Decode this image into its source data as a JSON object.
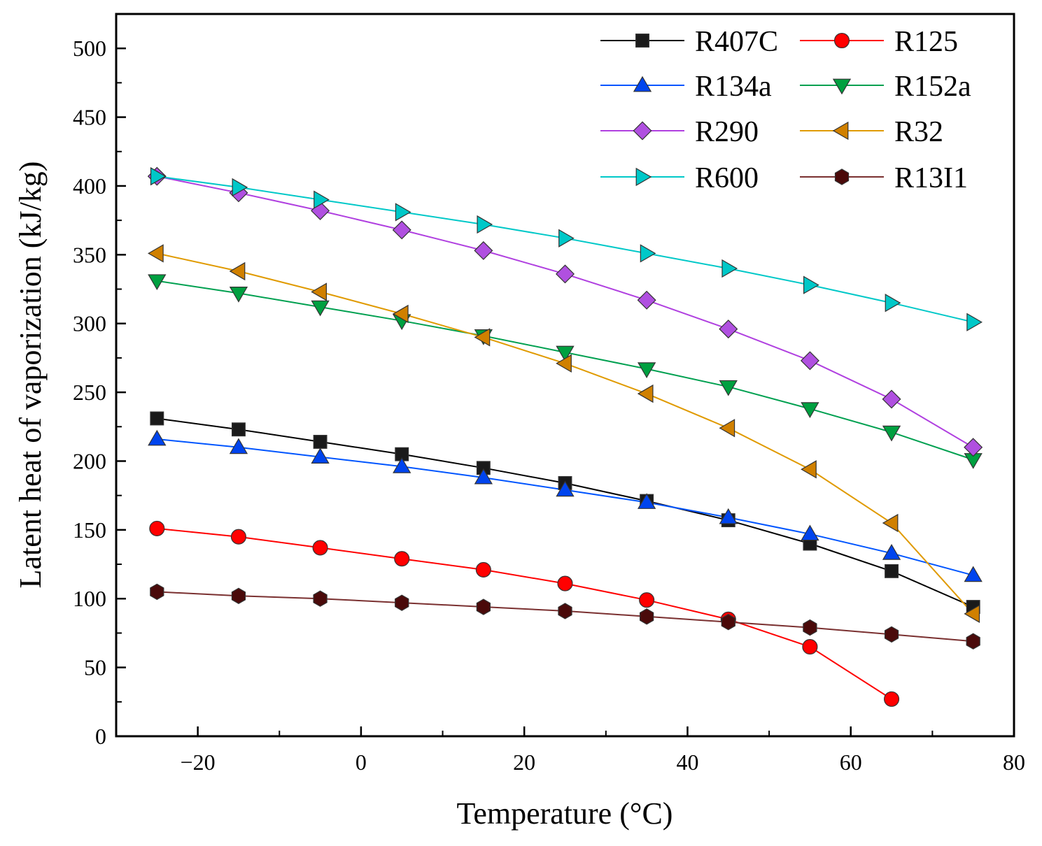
{
  "chart_data": {
    "type": "line",
    "title": "",
    "xlabel": "Temperature (°C)",
    "ylabel": "Latent heat of vaporization (kJ/kg)",
    "xlim": [
      -30,
      80
    ],
    "ylim": [
      0,
      525
    ],
    "xticks": [
      -20,
      0,
      20,
      40,
      60,
      80
    ],
    "yticks": [
      0,
      50,
      100,
      150,
      200,
      250,
      300,
      350,
      400,
      450,
      500
    ],
    "x_tick_labels": [
      "−20",
      "0",
      "20",
      "40",
      "60",
      "80"
    ],
    "y_tick_labels": [
      "0",
      "50",
      "100",
      "150",
      "200",
      "250",
      "300",
      "350",
      "400",
      "450",
      "500"
    ],
    "legend_position": "top-right",
    "series": [
      {
        "name": "R407C",
        "color": "#000000",
        "marker_fill": "#1a1a1a",
        "marker": "square",
        "x": [
          -25,
          -15,
          -5,
          5,
          15,
          25,
          35,
          45,
          55,
          65,
          75
        ],
        "y": [
          231,
          223,
          214,
          205,
          195,
          184,
          171,
          157,
          140,
          120,
          94
        ]
      },
      {
        "name": "R125",
        "color": "#ff0000",
        "marker_fill": "#ff0000",
        "marker": "circle",
        "x": [
          -25,
          -15,
          -5,
          5,
          15,
          25,
          35,
          45,
          55,
          65
        ],
        "y": [
          151,
          145,
          137,
          129,
          121,
          111,
          99,
          85,
          65,
          27
        ]
      },
      {
        "name": "R134a",
        "color": "#0055ff",
        "marker_fill": "#0044ee",
        "marker": "triangle-up",
        "x": [
          -25,
          -15,
          -5,
          5,
          15,
          25,
          35,
          45,
          55,
          65,
          75
        ],
        "y": [
          216,
          210,
          203,
          196,
          188,
          179,
          170,
          159,
          147,
          133,
          117
        ]
      },
      {
        "name": "R152a",
        "color": "#00a050",
        "marker_fill": "#00a040",
        "marker": "triangle-down",
        "x": [
          -25,
          -15,
          -5,
          5,
          15,
          25,
          35,
          45,
          55,
          65,
          75
        ],
        "y": [
          331,
          322,
          312,
          302,
          291,
          279,
          267,
          254,
          238,
          221,
          201
        ]
      },
      {
        "name": "R290",
        "color": "#b040e0",
        "marker_fill": "#b050e0",
        "marker": "diamond",
        "x": [
          -25,
          -15,
          -5,
          5,
          15,
          25,
          35,
          45,
          55,
          65,
          75
        ],
        "y": [
          407,
          395,
          382,
          368,
          353,
          336,
          317,
          296,
          273,
          245,
          210
        ]
      },
      {
        "name": "R32",
        "color": "#e09a00",
        "marker_fill": "#d08000",
        "marker": "triangle-left",
        "x": [
          -25,
          -15,
          -5,
          5,
          15,
          25,
          35,
          45,
          55,
          65,
          75
        ],
        "y": [
          351,
          338,
          323,
          307,
          290,
          271,
          249,
          224,
          194,
          155,
          89
        ]
      },
      {
        "name": "R600",
        "color": "#00c8c8",
        "marker_fill": "#00c8c8",
        "marker": "triangle-right",
        "x": [
          -25,
          -15,
          -5,
          5,
          15,
          25,
          35,
          45,
          55,
          65,
          75
        ],
        "y": [
          407,
          399,
          390,
          381,
          372,
          362,
          351,
          340,
          328,
          315,
          301
        ]
      },
      {
        "name": "R13I1",
        "color": "#7a3030",
        "marker_fill": "#4a0a0a",
        "marker": "hexagon",
        "x": [
          -25,
          -15,
          -5,
          5,
          15,
          25,
          35,
          45,
          55,
          65,
          75
        ],
        "y": [
          105,
          102,
          100,
          97,
          94,
          91,
          87,
          83,
          79,
          74,
          69
        ]
      }
    ]
  }
}
